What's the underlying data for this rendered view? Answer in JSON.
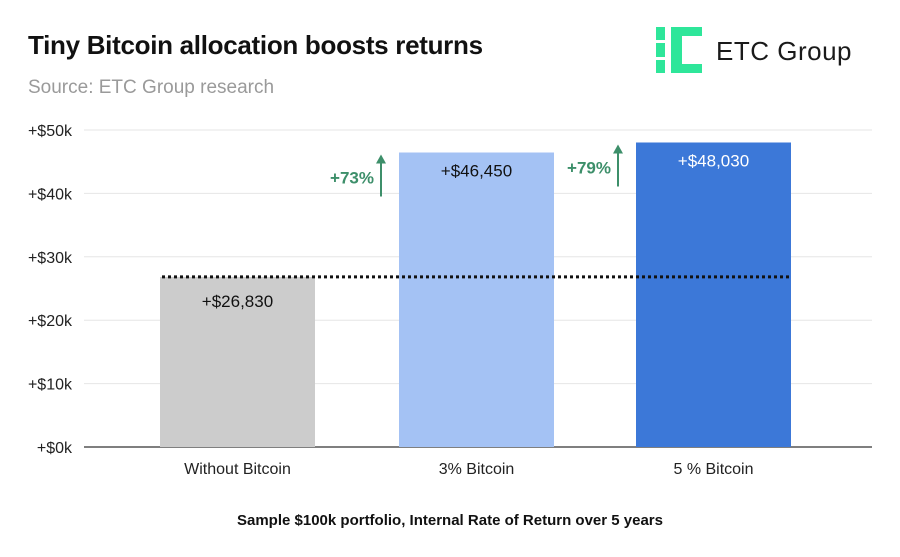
{
  "title": "Tiny Bitcoin allocation boosts returns",
  "subtitle": "Source: ETC Group research",
  "logo": {
    "text": "ETC Group",
    "icon": "etc-group-logo-icon",
    "color": "#2ee69a"
  },
  "footer": "Sample $100k portfolio, Internal Rate of Return over 5 years",
  "chart_data": {
    "type": "bar",
    "categories": [
      "Without Bitcoin",
      "3% Bitcoin",
      "5 % Bitcoin"
    ],
    "values": [
      26830,
      46450,
      48030
    ],
    "data_labels": [
      "+$26,830",
      "+$46,450",
      "+$48,030"
    ],
    "bar_colors": [
      "#cccccc",
      "#a4c2f4",
      "#3c78d8"
    ],
    "label_colors": [
      "#111111",
      "#111111",
      "#ffffff"
    ],
    "yticks": [
      0,
      10000,
      20000,
      30000,
      40000,
      50000
    ],
    "ytick_labels": [
      "+$0k",
      "+$10k",
      "+$20k",
      "+$30k",
      "+$40k",
      "+$50k"
    ],
    "ylim": [
      0,
      50000
    ],
    "grid": true,
    "reference_line": {
      "value": 26830,
      "style": "dotted",
      "color": "#111111"
    },
    "annotations": [
      {
        "text": "+73%",
        "category": "3% Bitcoin",
        "color": "#3d8f6a"
      },
      {
        "text": "+79%",
        "category": "5 % Bitcoin",
        "color": "#3d8f6a"
      }
    ]
  }
}
